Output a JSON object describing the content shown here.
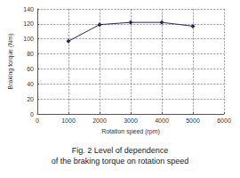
{
  "chart_data": {
    "type": "line",
    "title": "Fig. 2 Level of dependence\nof the braking torque on rotation speed",
    "x_label": "Rotation speed (rpm)",
    "y_label": "Braking torque (Nm)",
    "x": [
      1000,
      2000,
      3000,
      4000,
      5000
    ],
    "values": [
      97,
      119,
      122,
      122,
      117
    ],
    "color": "#1f2a6b",
    "marker": "diamond",
    "xlim": [
      0,
      6000
    ],
    "xticks": [
      0,
      1000,
      2000,
      3000,
      4000,
      5000,
      6000
    ],
    "ylim": [
      0,
      140
    ],
    "yticks": [
      0,
      20,
      40,
      60,
      80,
      100,
      120,
      140
    ],
    "grid": true
  }
}
